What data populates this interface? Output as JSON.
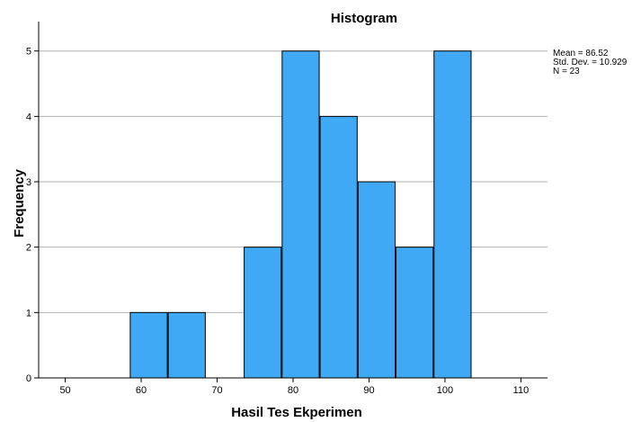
{
  "chart_data": {
    "type": "bar",
    "title": "Histogram",
    "xlabel": "Hasil Tes Ekperimen",
    "ylabel": "Frequency",
    "xlim": [
      46.5,
      113.5
    ],
    "ylim": [
      0,
      5.45
    ],
    "x_ticks": [
      50,
      60,
      70,
      80,
      90,
      100,
      110
    ],
    "y_ticks": [
      0,
      1,
      2,
      3,
      4,
      5
    ],
    "grid": "horizontal",
    "bins": [
      {
        "start": 58.5,
        "end": 63.5,
        "count": 1
      },
      {
        "start": 63.5,
        "end": 68.5,
        "count": 1
      },
      {
        "start": 68.5,
        "end": 73.5,
        "count": 0
      },
      {
        "start": 73.5,
        "end": 78.5,
        "count": 2
      },
      {
        "start": 78.5,
        "end": 83.5,
        "count": 5
      },
      {
        "start": 83.5,
        "end": 88.5,
        "count": 4
      },
      {
        "start": 88.5,
        "end": 93.5,
        "count": 3
      },
      {
        "start": 93.5,
        "end": 98.5,
        "count": 2
      },
      {
        "start": 98.5,
        "end": 103.5,
        "count": 5
      }
    ],
    "stats": {
      "mean_text": "Mean = 86.52",
      "std_text": "Std. Dev. = 10.929",
      "n_text": "N = 23"
    },
    "colors": {
      "bar_fill": "#3fa9f5",
      "bar_stroke": "#000000",
      "grid": "#b0b0b0",
      "axis": "#000000"
    }
  }
}
